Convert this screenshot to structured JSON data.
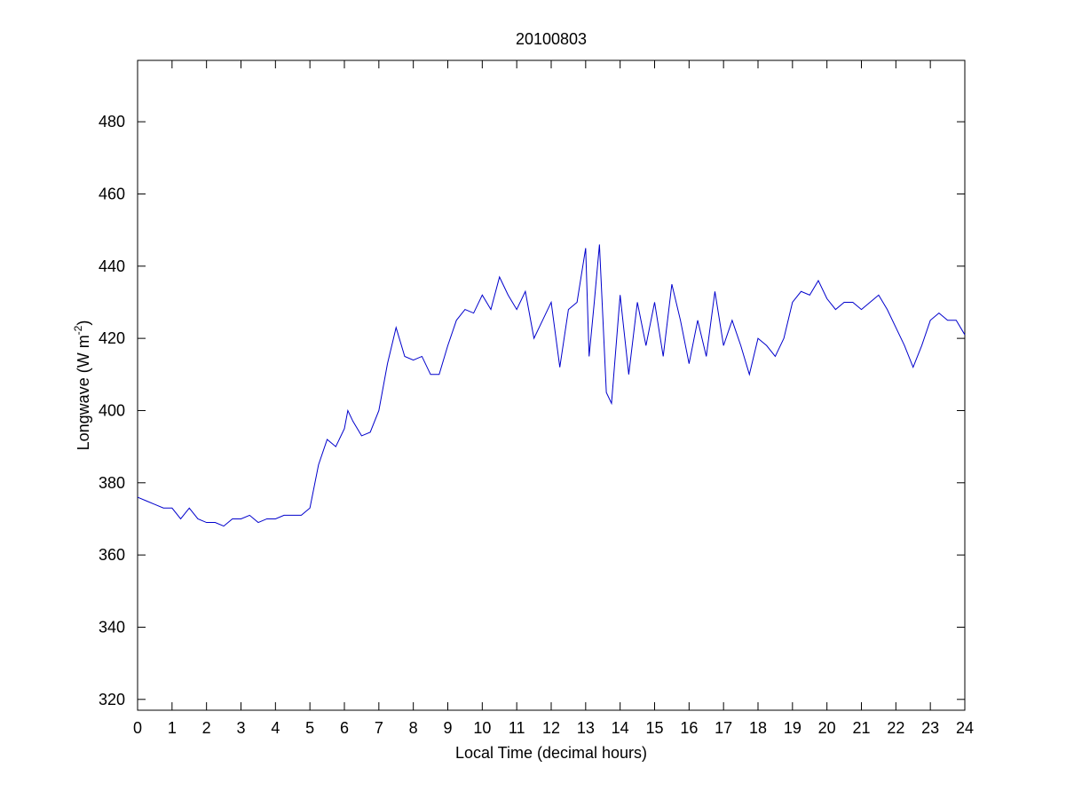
{
  "chart_data": {
    "type": "line",
    "title": "20100803",
    "xlabel": "Local Time (decimal hours)",
    "ylabel": [
      "Longwave (W m",
      "-2",
      ")"
    ],
    "x": [
      0,
      0.25,
      0.5,
      0.75,
      1,
      1.25,
      1.5,
      1.75,
      2,
      2.25,
      2.5,
      2.75,
      3,
      3.25,
      3.5,
      3.75,
      4,
      4.25,
      4.5,
      4.75,
      5,
      5.25,
      5.5,
      5.75,
      6,
      6.1,
      6.25,
      6.5,
      6.75,
      7,
      7.25,
      7.5,
      7.75,
      8,
      8.25,
      8.5,
      8.75,
      9,
      9.25,
      9.5,
      9.75,
      10,
      10.25,
      10.5,
      10.75,
      11,
      11.25,
      11.5,
      11.75,
      12,
      12.25,
      12.5,
      12.75,
      13,
      13.1,
      13.25,
      13.4,
      13.6,
      13.75,
      14,
      14.25,
      14.5,
      14.75,
      15,
      15.25,
      15.5,
      15.75,
      16,
      16.25,
      16.5,
      16.75,
      17,
      17.25,
      17.5,
      17.75,
      18,
      18.25,
      18.5,
      18.75,
      19,
      19.25,
      19.5,
      19.75,
      20,
      20.25,
      20.5,
      20.75,
      21,
      21.25,
      21.5,
      21.75,
      22,
      22.25,
      22.5,
      22.75,
      23,
      23.25,
      23.5,
      23.75,
      24
    ],
    "series": [
      {
        "color": "#0000cc",
        "values": [
          376,
          375,
          374,
          373,
          373,
          370,
          373,
          370,
          369,
          369,
          368,
          370,
          370,
          371,
          369,
          370,
          370,
          371,
          371,
          371,
          373,
          385,
          392,
          390,
          395,
          400,
          397,
          393,
          394,
          400,
          413,
          423,
          415,
          414,
          415,
          410,
          410,
          418,
          425,
          428,
          427,
          432,
          428,
          437,
          432,
          428,
          433,
          420,
          425,
          430,
          412,
          428,
          430,
          445,
          415,
          430,
          446,
          405,
          402,
          432,
          410,
          430,
          418,
          430,
          415,
          435,
          425,
          413,
          425,
          415,
          433,
          418,
          425,
          418,
          410,
          420,
          418,
          415,
          420,
          430,
          433,
          432,
          436,
          431,
          428,
          430,
          430,
          428,
          430,
          432,
          428,
          423,
          418,
          412,
          418,
          425,
          427,
          425,
          425,
          421
        ]
      }
    ],
    "xlim": [
      0,
      24
    ],
    "xticks": [
      0,
      1,
      2,
      3,
      4,
      5,
      6,
      7,
      8,
      9,
      10,
      11,
      12,
      13,
      14,
      15,
      16,
      17,
      18,
      19,
      20,
      21,
      22,
      23,
      24
    ],
    "ylim": [
      317,
      497
    ],
    "yticks": [
      320,
      340,
      360,
      380,
      400,
      420,
      440,
      460,
      480
    ],
    "grid": false
  }
}
